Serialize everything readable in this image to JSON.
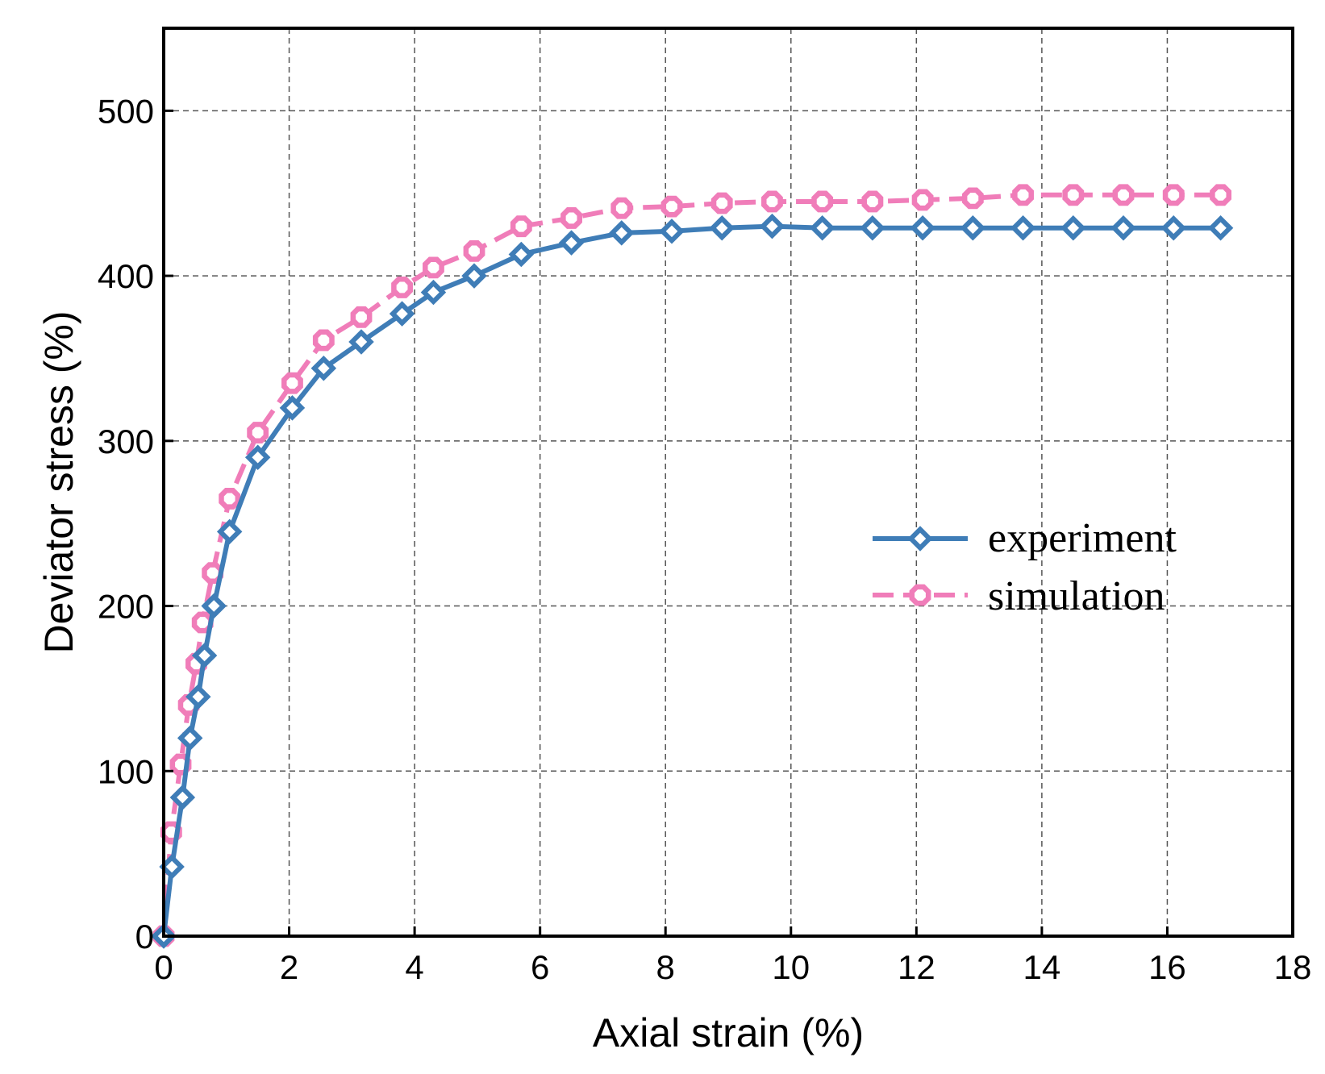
{
  "chart_data": {
    "type": "line",
    "xlabel": "Axial strain (%)",
    "ylabel": "Deviator stress (%)",
    "xlim": [
      0,
      18
    ],
    "ylim": [
      0,
      550
    ],
    "xticks": [
      "0",
      "2",
      "4",
      "6",
      "8",
      "10",
      "12",
      "14",
      "16",
      "18"
    ],
    "yticks": [
      "0",
      "100",
      "200",
      "300",
      "400",
      "500"
    ],
    "grid": true,
    "legend_position": "right-middle",
    "series": [
      {
        "name": "experiment",
        "color": "#3F7DB7",
        "line_style": "solid",
        "marker": "diamond",
        "x": [
          0,
          0.13,
          0.3,
          0.42,
          0.55,
          0.65,
          0.8,
          1.05,
          1.5,
          2.05,
          2.55,
          3.15,
          3.8,
          4.3,
          4.95,
          5.7,
          6.5,
          7.3,
          8.1,
          8.9,
          9.7,
          10.5,
          11.3,
          12.1,
          12.9,
          13.7,
          14.5,
          15.3,
          16.1,
          16.85
        ],
        "y": [
          0,
          42,
          84,
          120,
          145,
          170,
          200,
          245,
          290,
          320,
          344,
          360,
          377,
          390,
          400,
          413,
          420,
          426,
          427,
          429,
          430,
          429,
          429,
          429,
          429,
          429,
          429,
          429,
          429,
          429
        ]
      },
      {
        "name": "simulation",
        "color": "#F07DB9",
        "line_style": "dashed",
        "marker": "octagon",
        "x": [
          0,
          0.12,
          0.27,
          0.4,
          0.52,
          0.62,
          0.78,
          1.05,
          1.5,
          2.05,
          2.55,
          3.15,
          3.8,
          4.3,
          4.95,
          5.7,
          6.5,
          7.3,
          8.1,
          8.9,
          9.7,
          10.5,
          11.3,
          12.1,
          12.9,
          13.7,
          14.5,
          15.3,
          16.1,
          16.85
        ],
        "y": [
          0,
          63,
          104,
          140,
          165,
          190,
          220,
          265,
          305,
          335,
          361,
          375,
          393,
          405,
          415,
          430,
          435,
          441,
          442,
          444,
          445,
          445,
          445,
          446,
          447,
          449,
          449,
          449,
          449,
          449
        ]
      }
    ]
  },
  "legend": {
    "items": [
      "experiment",
      "simulation"
    ]
  }
}
